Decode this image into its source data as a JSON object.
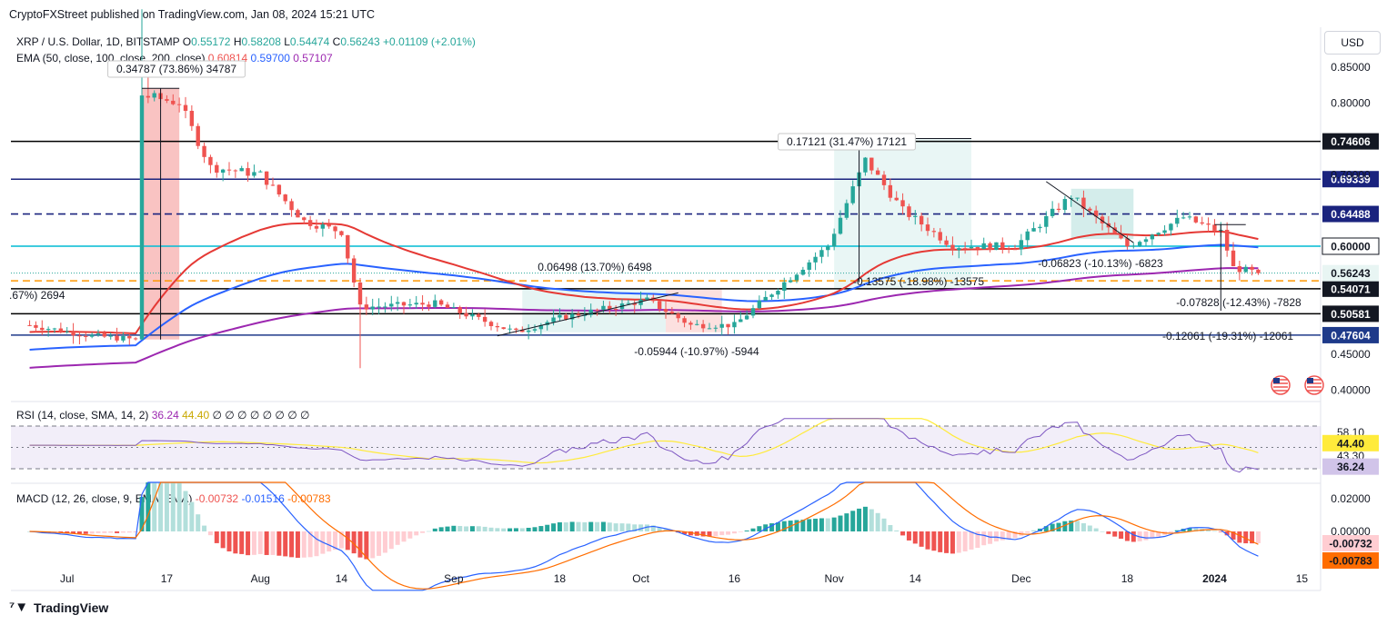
{
  "header": {
    "publisher": "CryptoFXStreet published on TradingView.com, Jan 08, 2024 15:21 UTC"
  },
  "main_legend": {
    "symbol": "XRP / U.S. Dollar, 1D, BITSTAMP",
    "o_label": "O",
    "o": "0.55172",
    "h_label": "H",
    "h": "0.58208",
    "l_label": "L",
    "l": "0.54474",
    "c_label": "C",
    "c": "0.56243",
    "change": "+0.01109 (+2.01%)"
  },
  "ema_legend": {
    "label": "EMA (50, close, 100, close, 200, close)",
    "ema50": "0.60814",
    "ema100": "0.59700",
    "ema200": "0.57107"
  },
  "rsi_legend": {
    "label": "RSI (14, close, SMA, 14, 2)",
    "rsi": "36.24",
    "sma": "44.40",
    "rest": "∅ ∅ ∅ ∅ ∅ ∅ ∅ ∅"
  },
  "macd_legend": {
    "label": "MACD (12, 26, close, 9, EMA, EMA)",
    "hist": "-0.00732",
    "macd": "-0.01516",
    "signal": "-0.00783"
  },
  "currency": "USD",
  "brand": "TradingView",
  "colors": {
    "up": "#26a69a",
    "down": "#ef5350",
    "ema50": "#e53935",
    "ema100": "#2962ff",
    "ema200": "#9c27b0",
    "rsi": "#7e57c2",
    "rsi_sma": "#ffeb3b",
    "macd": "#2962ff",
    "signal": "#ff6d00"
  },
  "chart_data": {
    "type": "candlestick",
    "price_axis_ticks": [
      "0.85000",
      "0.80000",
      "0.70000",
      "0.45000",
      "0.40000"
    ],
    "x_axis_labels": [
      "Jul",
      "17",
      "Aug",
      "14",
      "Sep",
      "18",
      "Oct",
      "16",
      "Nov",
      "14",
      "Dec",
      "18",
      "2024",
      "15"
    ],
    "horizontal_levels": [
      {
        "label": "0.74606",
        "value": 0.74606,
        "color": "#000000",
        "style": "solid",
        "badge": "dark"
      },
      {
        "label": "0.69339",
        "value": 0.69339,
        "color": "#1a237e",
        "style": "solid",
        "badge": "navy"
      },
      {
        "label": "0.64488",
        "value": 0.64488,
        "color": "#1a237e",
        "style": "dashed",
        "badge": "navy"
      },
      {
        "label": "0.60000",
        "value": 0.6,
        "color": "#00bcd4",
        "style": "solid",
        "badge": "light"
      },
      {
        "label": "0.55174",
        "value": 0.55174,
        "color": "#ff9800",
        "style": "dashed",
        "badge": "orange"
      },
      {
        "label": "0.54071",
        "value": 0.54071,
        "color": "#000000",
        "style": "solid",
        "badge": "dark"
      },
      {
        "label": "0.50581",
        "value": 0.50581,
        "color": "#000000",
        "style": "solid",
        "badge": "dark"
      },
      {
        "label": "0.47604",
        "value": 0.47604,
        "color": "#1e3a8a",
        "style": "solid",
        "badge": "blue"
      }
    ],
    "last_price": {
      "label": "0.56243",
      "value": 0.56243
    },
    "ranges": [
      {
        "text": "0.34787 (73.86%) 34787"
      },
      {
        "text": "0.17121 (31.47%) 17121"
      },
      {
        "text": "0.06498 (13.70%) 6498"
      },
      {
        "text": "-0.05944 (-10.97%) -5944"
      },
      {
        "text": "-0.06823 (-10.13%) -6823"
      },
      {
        "text": "-0.13575 (-18.98%) -13575"
      },
      {
        "text": "-0.07828 (-12.43%) -7828"
      },
      {
        "text": "-0.12061 (-19.31%) -12061"
      },
      {
        "text": ".67%) 2694"
      }
    ],
    "close_anchors": [
      {
        "date": "2023-06-25",
        "close": 0.49
      },
      {
        "date": "2023-07-05",
        "close": 0.475
      },
      {
        "date": "2023-07-12",
        "close": 0.47
      },
      {
        "date": "2023-07-13",
        "close": 0.81
      },
      {
        "date": "2023-07-19",
        "close": 0.8
      },
      {
        "date": "2023-07-24",
        "close": 0.71
      },
      {
        "date": "2023-08-01",
        "close": 0.7
      },
      {
        "date": "2023-08-08",
        "close": 0.635
      },
      {
        "date": "2023-08-14",
        "close": 0.62
      },
      {
        "date": "2023-08-17",
        "close": 0.515
      },
      {
        "date": "2023-08-29",
        "close": 0.52
      },
      {
        "date": "2023-09-11",
        "close": 0.48
      },
      {
        "date": "2023-09-18",
        "close": 0.5
      },
      {
        "date": "2023-10-02",
        "close": 0.525
      },
      {
        "date": "2023-10-09",
        "close": 0.49
      },
      {
        "date": "2023-10-16",
        "close": 0.49
      },
      {
        "date": "2023-10-22",
        "close": 0.535
      },
      {
        "date": "2023-10-31",
        "close": 0.6
      },
      {
        "date": "2023-11-06",
        "close": 0.72
      },
      {
        "date": "2023-11-12",
        "close": 0.65
      },
      {
        "date": "2023-11-20",
        "close": 0.6
      },
      {
        "date": "2023-11-30",
        "close": 0.6
      },
      {
        "date": "2023-12-09",
        "close": 0.67
      },
      {
        "date": "2023-12-18",
        "close": 0.6
      },
      {
        "date": "2023-12-27",
        "close": 0.64
      },
      {
        "date": "2024-01-02",
        "close": 0.62
      },
      {
        "date": "2024-01-04",
        "close": 0.57
      },
      {
        "date": "2024-01-08",
        "close": 0.56243
      }
    ],
    "rsi_axis_ticks": [
      "58.10",
      "44.40",
      "43.30",
      "36.24"
    ],
    "macd_axis_ticks": [
      "0.02000",
      "0.00000",
      "-0.00732",
      "-0.00783"
    ]
  }
}
